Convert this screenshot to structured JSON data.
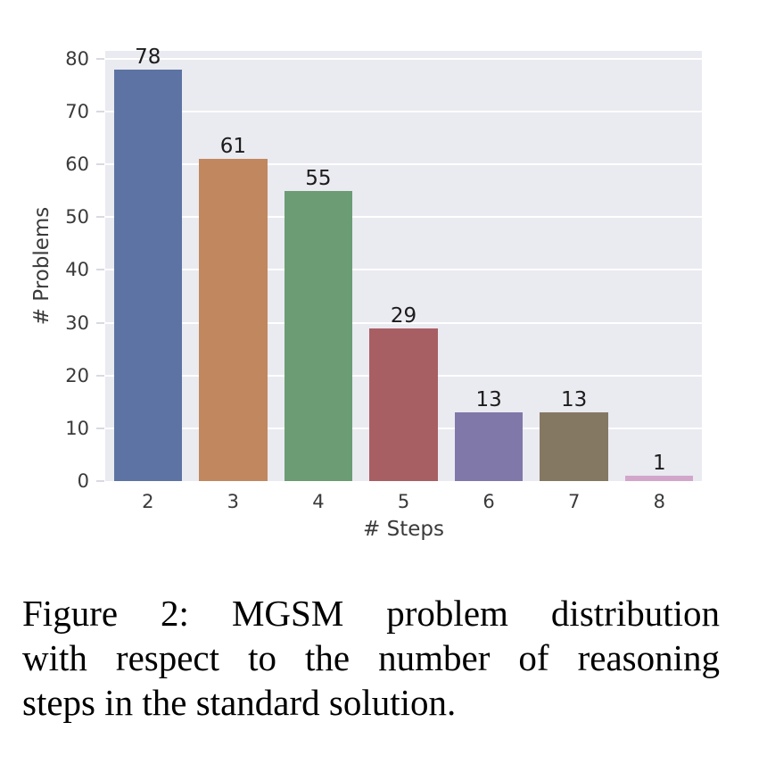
{
  "figure": {
    "caption_lines": [
      "Figure 2:  MGSM problem distribution",
      "with respect to the number of reasoning",
      "steps in the standard solution."
    ]
  },
  "chart_data": {
    "type": "bar",
    "title": "",
    "xlabel": "# Steps",
    "ylabel": "# Problems",
    "categories": [
      "2",
      "3",
      "4",
      "5",
      "6",
      "7",
      "8"
    ],
    "values": [
      78,
      61,
      55,
      29,
      13,
      13,
      1
    ],
    "bar_labels": [
      "78",
      "61",
      "55",
      "29",
      "13",
      "13",
      "1"
    ],
    "bar_colors": [
      "#5d73a3",
      "#c1875f",
      "#6b9c74",
      "#a85f64",
      "#8078a8",
      "#857862",
      "#d2a6ca"
    ],
    "ylim": [
      0,
      81.5
    ],
    "yticks": [
      0,
      10,
      20,
      30,
      40,
      50,
      60,
      70,
      80
    ],
    "grid": "horizontal-white-on-gray",
    "plot_bg": "#eaeaf1",
    "legend": "none"
  }
}
